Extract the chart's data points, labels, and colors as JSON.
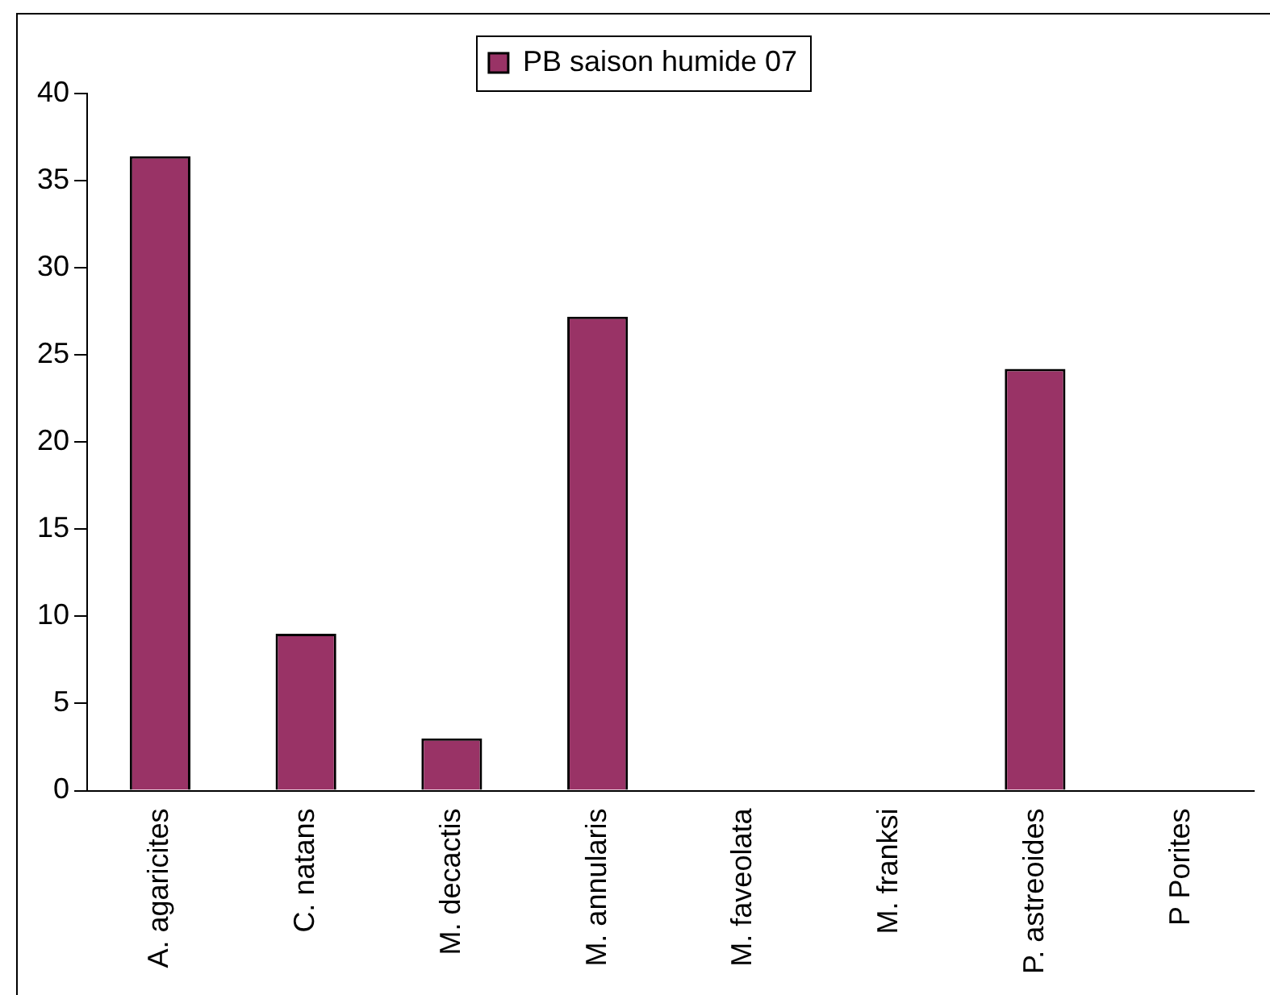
{
  "chart_data": {
    "type": "bar",
    "categories": [
      "A. agaricites",
      "C. natans",
      "M. decactis",
      "M. annularis",
      "M. faveolata",
      "M. franksi",
      "P. astreoides",
      "P Porites"
    ],
    "series": [
      {
        "name": "PB saison humide 07",
        "color": "#993366",
        "values": [
          36.4,
          9,
          3,
          27.2,
          0,
          0,
          24.2,
          0
        ]
      }
    ],
    "ylim": [
      0,
      40
    ],
    "yticks": [
      0,
      5,
      10,
      15,
      20,
      25,
      30,
      35,
      40
    ],
    "grid": false,
    "legend": "top"
  }
}
